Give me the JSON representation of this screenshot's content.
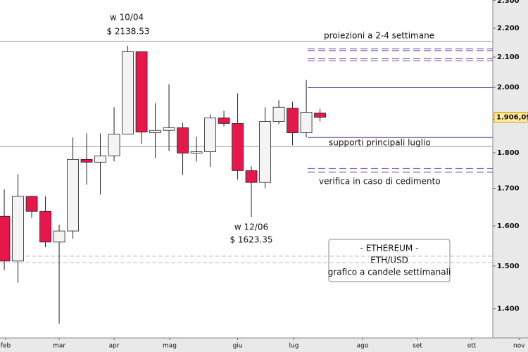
{
  "chart_data": {
    "type": "candlestick",
    "log_scale": true,
    "x": [
      0,
      1,
      2,
      3,
      4,
      5,
      6,
      7,
      8,
      9,
      10,
      11,
      12,
      13,
      14,
      15,
      16,
      17,
      18,
      19,
      20,
      21,
      22,
      23
    ],
    "open": [
      1625,
      1512,
      1678,
      1638,
      1559,
      1587,
      1781,
      1773,
      1791,
      1855,
      2118,
      1859,
      1866,
      1874,
      1799,
      1803,
      1904,
      1887,
      1749,
      1716,
      1893,
      1934,
      1859,
      1919
    ],
    "high": [
      1697,
      1739,
      1680,
      1678,
      1603,
      1845,
      1857,
      1857,
      1937,
      2138.53,
      2118,
      1950,
      2010,
      1889,
      1847,
      1915,
      1926,
      1981,
      1761,
      1937,
      1959,
      1954,
      2024,
      1932
    ],
    "low": [
      1490,
      1460,
      1621,
      1546,
      1367,
      1567,
      1710,
      1683,
      1775,
      1855,
      1826,
      1785,
      1805,
      1737,
      1775,
      1759,
      1878,
      1724,
      1623.35,
      1700,
      1885,
      1822,
      1845,
      1893
    ],
    "close": [
      1512,
      1678,
      1638,
      1559,
      1587,
      1781,
      1773,
      1791,
      1855,
      2118,
      1861,
      1866,
      1874,
      1799,
      1803,
      1904,
      1887,
      1749,
      1716,
      1893,
      1937,
      1859,
      1921,
      1906.09
    ],
    "up_color": "#f4f4f4",
    "down_color": "#e5174b",
    "xlim": [
      -0.31,
      38.15
    ],
    "xticks": [
      {
        "value": 0.1,
        "label": "feb"
      },
      {
        "value": 4.0,
        "label": "mar"
      },
      {
        "value": 8.0,
        "label": "apr"
      },
      {
        "value": 12.05,
        "label": "mag"
      },
      {
        "value": 17.0,
        "label": "giu"
      },
      {
        "value": 21.1,
        "label": "lug"
      },
      {
        "value": 26.1,
        "label": "ago"
      },
      {
        "value": 30.1,
        "label": "set"
      },
      {
        "value": 34.05,
        "label": "ott"
      },
      {
        "value": 37.5,
        "label": "nov"
      }
    ],
    "ylim": [
      1336,
      2302
    ],
    "yticks": [
      {
        "value": 1400,
        "label": "1.400"
      },
      {
        "value": 1500,
        "label": "1.500"
      },
      {
        "value": 1600,
        "label": "1.600"
      },
      {
        "value": 1700,
        "label": "1.700"
      },
      {
        "value": 1800,
        "label": "1.800"
      },
      {
        "value": 1900,
        "label": "1.900"
      },
      {
        "value": 2000,
        "label": "2.000"
      },
      {
        "value": 2100,
        "label": "2.100"
      },
      {
        "value": 2200,
        "label": "2.200"
      },
      {
        "value": 2300,
        "label": "2.300"
      }
    ],
    "last_price": {
      "value": 1906.09,
      "label": "1.906,09"
    },
    "levels": [
      {
        "value": 2154,
        "color": "#999999",
        "dash": "none",
        "from": -0.31
      },
      {
        "value": 1818,
        "color": "#999999",
        "dash": "none",
        "from": -0.31
      },
      {
        "value": 1524,
        "color": "#bbbbbb",
        "dash": "6 3",
        "from": -0.31
      },
      {
        "value": 1508,
        "color": "#bbbbbb",
        "dash": "6 3",
        "from": -0.31
      },
      {
        "value": 2128,
        "color": "#6a3fa0",
        "dash": "10 5",
        "from": 22.1
      },
      {
        "value": 2122,
        "color": "#6a3fa0",
        "dash": "10 5",
        "from": 22.1
      },
      {
        "value": 2094,
        "color": "#6a3fa0",
        "dash": "10 5",
        "from": 22.1
      },
      {
        "value": 2087,
        "color": "#6a3fa0",
        "dash": "10 5",
        "from": 22.1
      },
      {
        "value": 1999,
        "color": "#6a3fa0",
        "dash": "none",
        "from": 22.1
      },
      {
        "value": 1845,
        "color": "#6a3fa0",
        "dash": "none",
        "from": 22.1
      },
      {
        "value": 1755,
        "color": "#6a3fa0",
        "dash": "10 5",
        "from": 22.1
      },
      {
        "value": 1745,
        "color": "#6a3fa0",
        "dash": "10 5",
        "from": 22.1
      }
    ],
    "annotations": [
      "w 10/04",
      "$ 2138.53",
      "w 12/06",
      "$ 1623.35",
      "proiezioni a 2-4 settimane",
      "supporti principali luglio",
      "verifica in caso di cedimento"
    ],
    "legend_box": [
      "- ETHEREUM -",
      "ETH/USD",
      "grafico a candele settimanali"
    ]
  }
}
